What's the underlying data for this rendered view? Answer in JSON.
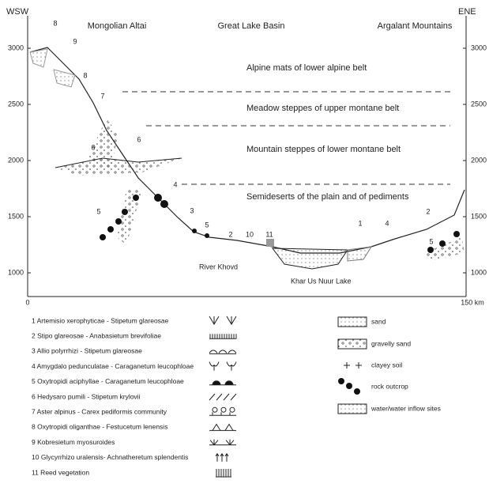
{
  "header": {
    "left_direction": "WSW",
    "right_direction": "ENE",
    "regions": [
      "Mongolian Altai",
      "Great Lake Basin",
      "Argalant Mountains"
    ]
  },
  "axis": {
    "left_ticks": [
      3000,
      2500,
      2000,
      1500,
      1000
    ],
    "right_ticks": [
      3000,
      2500,
      2000,
      1500,
      1000
    ],
    "x_start": "0",
    "x_end": "150 km"
  },
  "belts": [
    "Alpine mats of lower alpine belt",
    "Meadow steppes of upper montane belt",
    "Mountain steppes of lower montane belt",
    "Semideserts of the plain and of pediments"
  ],
  "places": [
    "River Khovd",
    "Khar Us Nuur Lake"
  ],
  "profile_labels": [
    "8",
    "9",
    "8",
    "7",
    "6",
    "6",
    "4",
    "5",
    "3",
    "5",
    "2",
    "10",
    "11",
    "1",
    "4",
    "2",
    "5"
  ],
  "legend_communities": [
    "1 Artemisio xerophyticae - Stipetum glareosae",
    "2 Stipo glareosae - Anabasietum brevifoliae",
    "3 Allio polyrrhizi - Stipetum glareosae",
    "4 Amygdalo pedunculatae - Caraganetum leucophloae",
    "5 Oxytropidi aciphyllae - Caraganetum leucophloae",
    "6 Hedysaro pumili - Stipetum krylovii",
    "7 Aster alpinus - Carex pediformis community",
    "8 Oxytropidi oliganthae - Festucetum lenensis",
    "9 Kobresietum myosuroides",
    "10 Glycyrrhizo uralensis- Achnatheretum splendentis",
    "11 Reed vegetation"
  ],
  "legend_substrates": [
    "sand",
    "gravelly sand",
    "clayey soil",
    "rock outcrop",
    "water/water inflow sites"
  ]
}
